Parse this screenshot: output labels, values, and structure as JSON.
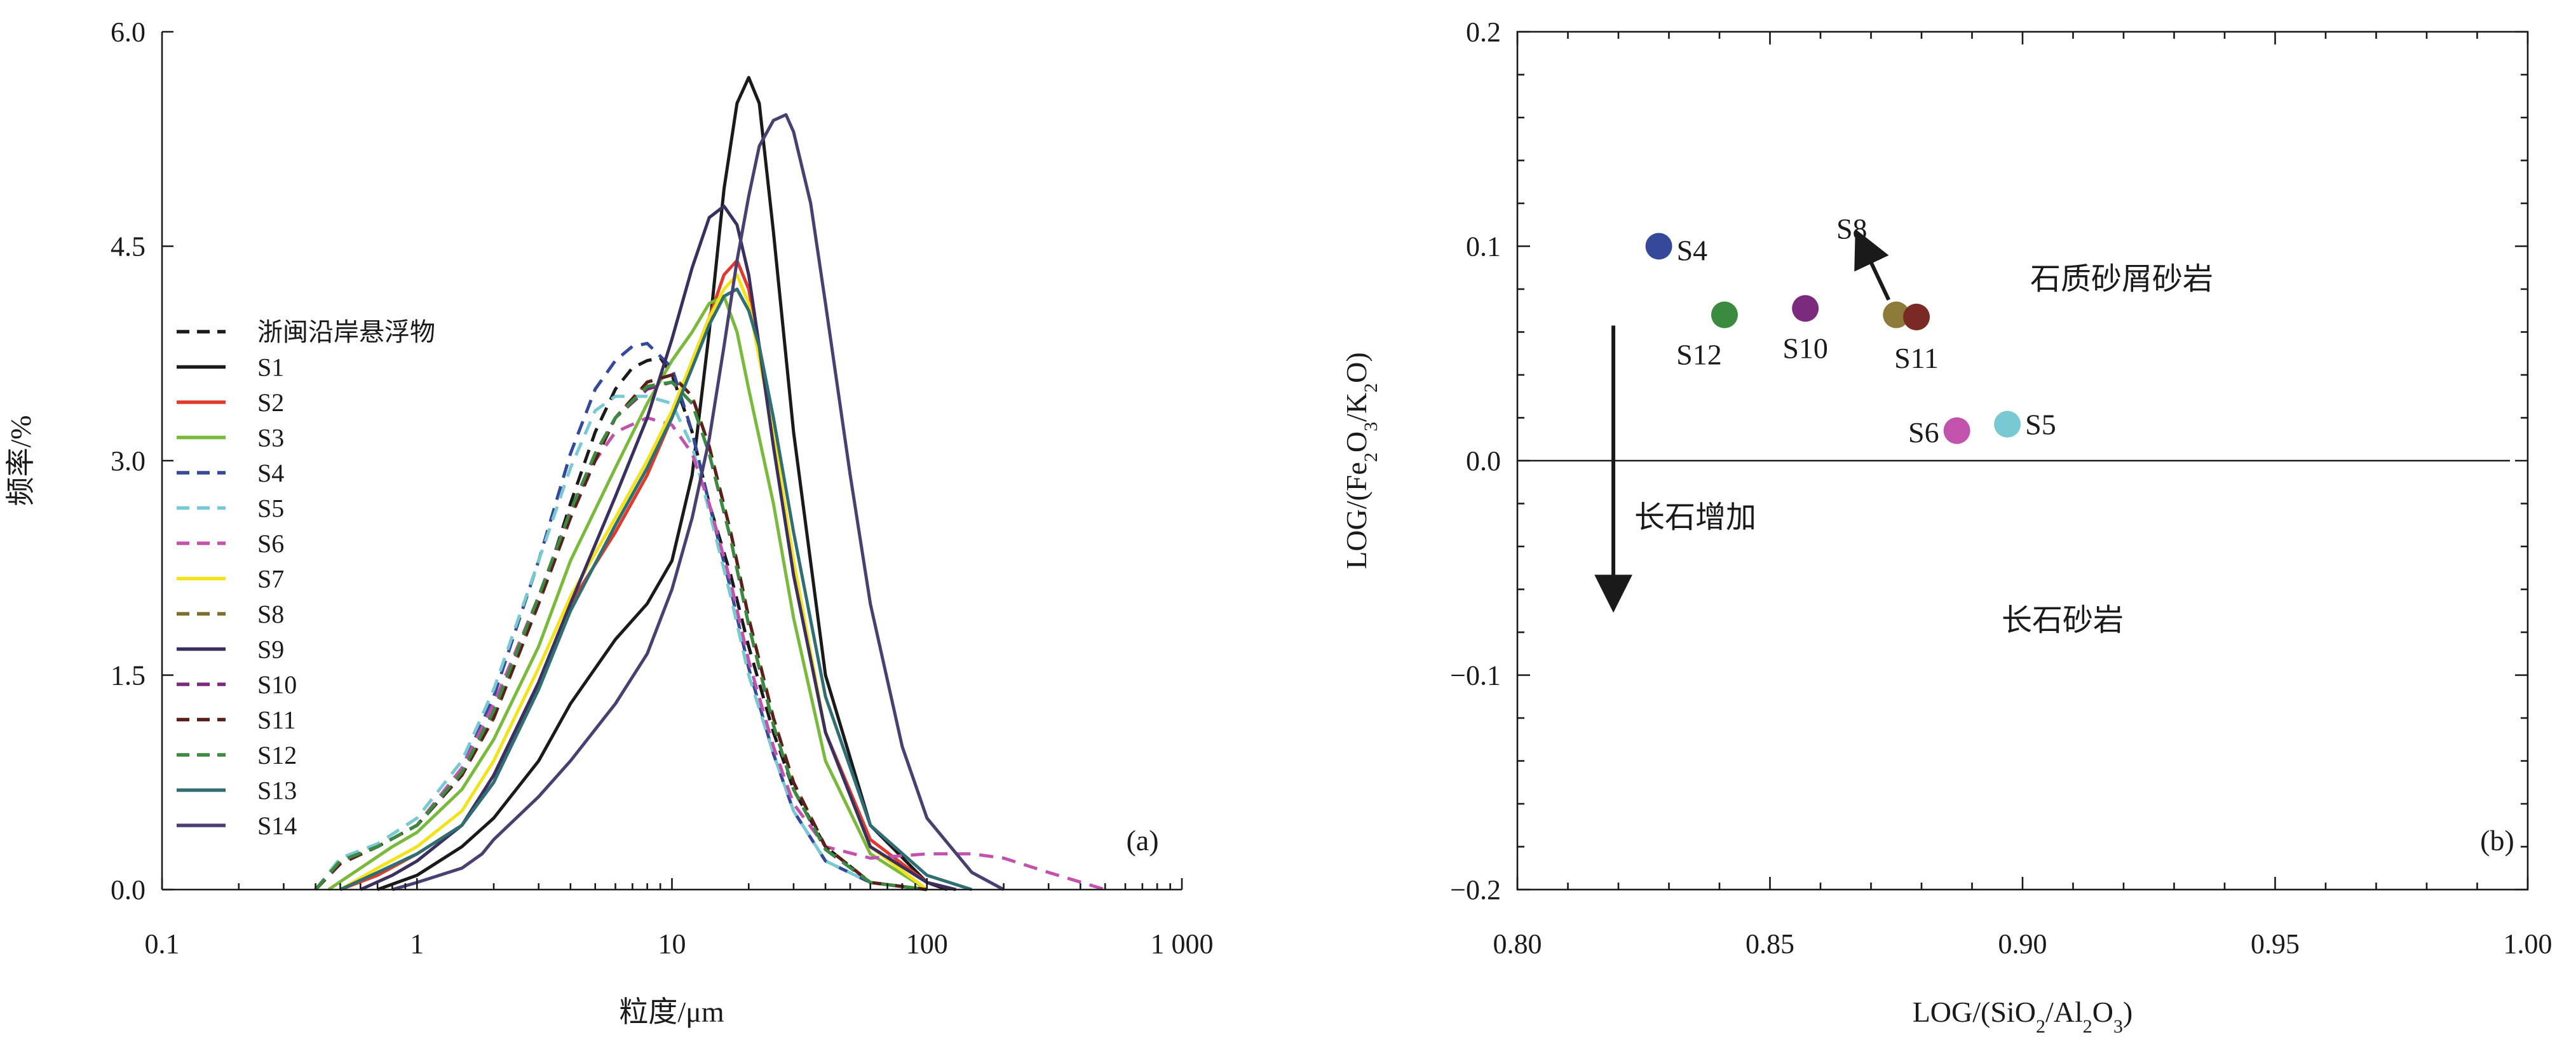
{
  "chart_data": [
    {
      "type": "line",
      "panel_label": "(a)",
      "xlabel": "粒度/μm",
      "ylabel": "频率/%",
      "x_scale": "log",
      "xlim": [
        0.1,
        1000
      ],
      "ylim": [
        0,
        6.0
      ],
      "x_ticks": [
        0.1,
        1,
        10,
        100,
        1000
      ],
      "x_tick_labels": [
        "0.1",
        "1",
        "10",
        "100",
        "1 000"
      ],
      "y_ticks": [
        0,
        1.5,
        3.0,
        4.5,
        6.0
      ],
      "y_tick_labels": [
        "0.0",
        "1.5",
        "3.0",
        "4.5",
        "6.0"
      ],
      "grid": false,
      "legend_position": "left",
      "legend_entries": [
        "浙闽沿岸悬浮物",
        "S1",
        "S2",
        "S3",
        "S4",
        "S5",
        "S6",
        "S7",
        "S8",
        "S9",
        "S10",
        "S11",
        "S12",
        "S13",
        "S14"
      ],
      "series": [
        {
          "name": "浙闽沿岸悬浮物",
          "color": "#1a1a1a",
          "dash": true,
          "x": [
            0.4,
            0.5,
            0.7,
            1.0,
            1.5,
            2.0,
            3.0,
            4.0,
            5.0,
            6.0,
            7.0,
            8.0,
            9.0,
            10.0,
            12.0,
            14.0,
            17.0,
            20.0,
            25.0,
            30.0,
            40.0,
            60.0,
            100.0
          ],
          "y": [
            0.0,
            0.2,
            0.3,
            0.45,
            0.8,
            1.2,
            2.0,
            2.7,
            3.2,
            3.5,
            3.65,
            3.7,
            3.72,
            3.6,
            3.2,
            2.7,
            2.2,
            1.7,
            1.1,
            0.7,
            0.3,
            0.05,
            0.0
          ]
        },
        {
          "name": "S1",
          "color": "#1a1a1a",
          "dash": false,
          "x": [
            0.7,
            1.0,
            1.5,
            2.0,
            3.0,
            4.0,
            6.0,
            8.0,
            10.0,
            12.0,
            14.0,
            16.0,
            18.0,
            20.0,
            22.0,
            25.0,
            30.0,
            40.0,
            60.0,
            100.0,
            120.0
          ],
          "y": [
            0.0,
            0.1,
            0.3,
            0.5,
            0.9,
            1.3,
            1.75,
            2.0,
            2.3,
            2.9,
            3.9,
            4.9,
            5.5,
            5.68,
            5.5,
            4.6,
            3.2,
            1.5,
            0.45,
            0.05,
            0.0
          ]
        },
        {
          "name": "S2",
          "color": "#e03a2f",
          "dash": false,
          "x": [
            0.5,
            0.7,
            1.0,
            1.5,
            2.0,
            3.0,
            4.0,
            6.0,
            8.0,
            10.0,
            12.0,
            14.0,
            16.0,
            18.0,
            20.0,
            22.0,
            25.0,
            30.0,
            40.0,
            60.0,
            100.0,
            130.0
          ],
          "y": [
            0.0,
            0.1,
            0.25,
            0.45,
            0.75,
            1.45,
            2.0,
            2.5,
            2.9,
            3.3,
            3.7,
            4.0,
            4.3,
            4.4,
            4.2,
            3.8,
            3.2,
            2.2,
            1.1,
            0.35,
            0.05,
            0.0
          ]
        },
        {
          "name": "S3",
          "color": "#79b93b",
          "dash": false,
          "x": [
            0.45,
            0.6,
            0.8,
            1.0,
            1.5,
            2.0,
            3.0,
            4.0,
            6.0,
            8.0,
            10.0,
            12.0,
            14.0,
            16.0,
            18.0,
            20.0,
            25.0,
            30.0,
            40.0,
            60.0,
            100.0
          ],
          "y": [
            0.0,
            0.15,
            0.3,
            0.4,
            0.7,
            1.05,
            1.7,
            2.3,
            2.95,
            3.4,
            3.7,
            3.9,
            4.1,
            4.15,
            3.9,
            3.5,
            2.7,
            1.9,
            0.9,
            0.25,
            0.0
          ]
        },
        {
          "name": "S4",
          "color": "#34499a",
          "dash": true,
          "x": [
            0.4,
            0.5,
            0.7,
            1.0,
            1.5,
            2.0,
            3.0,
            4.0,
            5.0,
            6.0,
            7.0,
            8.0,
            10.0,
            12.0,
            14.0,
            17.0,
            20.0,
            25.0,
            30.0,
            40.0,
            60.0,
            100.0
          ],
          "y": [
            0.0,
            0.2,
            0.3,
            0.45,
            0.85,
            1.35,
            2.3,
            3.05,
            3.5,
            3.7,
            3.8,
            3.82,
            3.65,
            3.2,
            2.7,
            2.1,
            1.55,
            0.95,
            0.55,
            0.2,
            0.05,
            0.0
          ]
        },
        {
          "name": "S5",
          "color": "#78c9d2",
          "dash": true,
          "x": [
            0.4,
            0.5,
            0.7,
            1.0,
            1.5,
            2.0,
            3.0,
            4.0,
            5.0,
            6.0,
            7.0,
            8.0,
            10.0,
            12.0,
            14.0,
            17.0,
            20.0,
            25.0,
            30.0,
            40.0,
            60.0,
            100.0
          ],
          "y": [
            0.0,
            0.22,
            0.32,
            0.5,
            0.9,
            1.4,
            2.3,
            2.95,
            3.35,
            3.45,
            3.45,
            3.45,
            3.4,
            3.1,
            2.65,
            2.05,
            1.5,
            0.95,
            0.55,
            0.2,
            0.05,
            0.0
          ]
        },
        {
          "name": "S6",
          "color": "#c253ad",
          "dash": true,
          "x": [
            0.4,
            0.5,
            0.7,
            1.0,
            1.5,
            2.0,
            3.0,
            4.0,
            5.0,
            6.0,
            8.0,
            10.0,
            12.0,
            14.0,
            17.0,
            20.0,
            25.0,
            30.0,
            40.0,
            60.0,
            100.0,
            150.0,
            200.0,
            300.0,
            500.0
          ],
          "y": [
            0.0,
            0.2,
            0.3,
            0.45,
            0.85,
            1.3,
            2.05,
            2.65,
            3.0,
            3.2,
            3.3,
            3.25,
            3.05,
            2.7,
            2.15,
            1.6,
            1.0,
            0.6,
            0.3,
            0.22,
            0.25,
            0.25,
            0.22,
            0.12,
            0.0
          ]
        },
        {
          "name": "S7",
          "color": "#f4e31b",
          "dash": false,
          "x": [
            0.5,
            0.7,
            1.0,
            1.5,
            2.0,
            3.0,
            4.0,
            6.0,
            8.0,
            10.0,
            12.0,
            14.0,
            16.0,
            18.0,
            20.0,
            25.0,
            30.0,
            40.0,
            60.0,
            100.0
          ],
          "y": [
            0.0,
            0.15,
            0.3,
            0.55,
            0.9,
            1.55,
            2.05,
            2.6,
            3.0,
            3.35,
            3.7,
            4.0,
            4.2,
            4.3,
            4.1,
            3.2,
            2.3,
            1.1,
            0.3,
            0.0
          ]
        },
        {
          "name": "S8",
          "color": "#7c6b2c",
          "dash": true,
          "x": [
            0.4,
            0.5,
            0.7,
            1.0,
            1.5,
            2.0,
            3.0,
            4.0,
            5.0,
            6.0,
            8.0,
            10.0,
            12.0,
            14.0,
            17.0,
            20.0,
            25.0,
            30.0,
            40.0,
            60.0,
            100.0
          ],
          "y": [
            0.0,
            0.2,
            0.3,
            0.45,
            0.8,
            1.2,
            2.0,
            2.6,
            3.05,
            3.3,
            3.55,
            3.6,
            3.45,
            3.1,
            2.5,
            1.9,
            1.2,
            0.75,
            0.3,
            0.05,
            0.0
          ]
        },
        {
          "name": "S9",
          "color": "#3a2f5e",
          "dash": false,
          "x": [
            0.6,
            0.8,
            1.0,
            1.5,
            2.0,
            3.0,
            4.0,
            6.0,
            8.0,
            10.0,
            12.0,
            14.0,
            16.0,
            18.0,
            20.0,
            22.0,
            25.0,
            30.0,
            40.0,
            60.0,
            100.0,
            130.0
          ],
          "y": [
            0.0,
            0.1,
            0.2,
            0.45,
            0.8,
            1.45,
            2.0,
            2.75,
            3.3,
            3.85,
            4.35,
            4.7,
            4.78,
            4.65,
            4.3,
            3.8,
            3.1,
            2.2,
            1.1,
            0.3,
            0.05,
            0.0
          ]
        },
        {
          "name": "S10",
          "color": "#7b2a7d",
          "dash": true,
          "x": [
            0.4,
            0.5,
            0.7,
            1.0,
            1.5,
            2.0,
            3.0,
            4.0,
            5.0,
            6.0,
            8.0,
            10.0,
            12.0,
            14.0,
            17.0,
            20.0,
            25.0,
            30.0,
            40.0,
            60.0,
            100.0
          ],
          "y": [
            0.0,
            0.2,
            0.3,
            0.45,
            0.8,
            1.25,
            2.05,
            2.65,
            3.05,
            3.3,
            3.5,
            3.55,
            3.4,
            3.05,
            2.45,
            1.85,
            1.15,
            0.7,
            0.28,
            0.05,
            0.0
          ]
        },
        {
          "name": "S11",
          "color": "#5a1f1a",
          "dash": true,
          "x": [
            0.4,
            0.5,
            0.7,
            1.0,
            1.5,
            2.0,
            3.0,
            4.0,
            5.0,
            6.0,
            8.0,
            10.0,
            12.0,
            14.0,
            17.0,
            20.0,
            25.0,
            30.0,
            40.0,
            60.0,
            100.0
          ],
          "y": [
            0.0,
            0.18,
            0.3,
            0.45,
            0.8,
            1.2,
            2.0,
            2.6,
            3.0,
            3.3,
            3.55,
            3.6,
            3.45,
            3.1,
            2.5,
            1.9,
            1.2,
            0.75,
            0.3,
            0.05,
            0.0
          ]
        },
        {
          "name": "S12",
          "color": "#3a8a3f",
          "dash": true,
          "x": [
            0.4,
            0.5,
            0.7,
            1.0,
            1.5,
            2.0,
            3.0,
            4.0,
            5.0,
            6.0,
            8.0,
            10.0,
            12.0,
            14.0,
            17.0,
            20.0,
            25.0,
            30.0,
            40.0,
            60.0,
            100.0
          ],
          "y": [
            0.0,
            0.2,
            0.3,
            0.45,
            0.82,
            1.25,
            2.05,
            2.65,
            3.05,
            3.3,
            3.52,
            3.55,
            3.4,
            3.05,
            2.45,
            1.85,
            1.15,
            0.7,
            0.28,
            0.05,
            0.0
          ]
        },
        {
          "name": "S13",
          "color": "#2f6f74",
          "dash": false,
          "x": [
            0.5,
            0.7,
            1.0,
            1.5,
            2.0,
            3.0,
            4.0,
            6.0,
            8.0,
            10.0,
            12.0,
            14.0,
            16.0,
            18.0,
            20.0,
            22.0,
            25.0,
            30.0,
            40.0,
            60.0,
            100.0,
            150.0
          ],
          "y": [
            0.0,
            0.12,
            0.25,
            0.45,
            0.75,
            1.4,
            1.95,
            2.55,
            2.95,
            3.3,
            3.65,
            3.95,
            4.15,
            4.2,
            4.05,
            3.8,
            3.3,
            2.5,
            1.35,
            0.45,
            0.1,
            0.0
          ]
        },
        {
          "name": "S14",
          "color": "#4b3f72",
          "dash": false,
          "x": [
            0.8,
            1.0,
            1.5,
            1.8,
            2.0,
            3.0,
            4.0,
            6.0,
            8.0,
            10.0,
            12.0,
            14.0,
            16.0,
            18.0,
            20.0,
            22.0,
            25.0,
            28.0,
            30.0,
            35.0,
            40.0,
            50.0,
            60.0,
            80.0,
            100.0,
            150.0,
            200.0
          ],
          "y": [
            0.0,
            0.05,
            0.15,
            0.25,
            0.35,
            0.65,
            0.9,
            1.3,
            1.65,
            2.1,
            2.6,
            3.15,
            3.8,
            4.4,
            4.85,
            5.2,
            5.38,
            5.42,
            5.3,
            4.8,
            4.1,
            2.9,
            2.0,
            1.0,
            0.5,
            0.12,
            0.0
          ]
        }
      ]
    },
    {
      "type": "scatter",
      "panel_label": "(b)",
      "xlabel": "LOG/(SiO2/Al2O3)",
      "ylabel": "LOG/(Fe2O3/K2O)",
      "xlim": [
        0.8,
        1.0
      ],
      "ylim": [
        -0.2,
        0.2
      ],
      "x_ticks": [
        0.8,
        0.85,
        0.9,
        0.95,
        1.0
      ],
      "x_tick_labels": [
        "0.80",
        "0.85",
        "0.90",
        "0.95",
        "1.00"
      ],
      "y_ticks": [
        -0.2,
        -0.1,
        0.0,
        0.1,
        0.2
      ],
      "y_tick_labels": [
        "−0.2",
        "−0.1",
        "0.0",
        "0.1",
        "0.2"
      ],
      "grid": false,
      "reference_line_y": 0.0,
      "region_labels": [
        "石质砂屑砂岩",
        "长石砂岩"
      ],
      "arrow_label": "长石增加",
      "points": [
        {
          "name": "S4",
          "x": 0.828,
          "y": 0.1,
          "color": "#34499a"
        },
        {
          "name": "S12",
          "x": 0.841,
          "y": 0.068,
          "color": "#3a8a3f"
        },
        {
          "name": "S10",
          "x": 0.857,
          "y": 0.071,
          "color": "#7b2a7d"
        },
        {
          "name": "S8",
          "x": 0.875,
          "y": 0.068,
          "color": "#8c7a3a"
        },
        {
          "name": "S11",
          "x": 0.879,
          "y": 0.067,
          "color": "#7a2a25"
        },
        {
          "name": "S6",
          "x": 0.887,
          "y": 0.014,
          "color": "#c253ad"
        },
        {
          "name": "S5",
          "x": 0.897,
          "y": 0.017,
          "color": "#78c9d2"
        }
      ]
    }
  ]
}
